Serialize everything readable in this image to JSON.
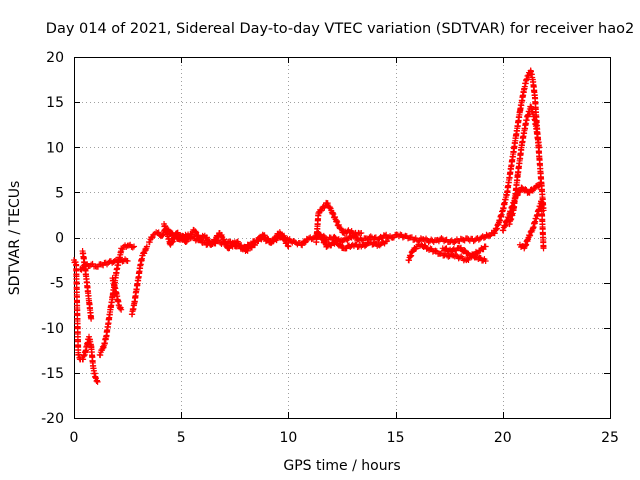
{
  "chart_data": {
    "type": "scatter",
    "title": "Day 014 of 2021, Sidereal Day-to-day VTEC variation (SDTVAR) for receiver hao2",
    "xlabel": "GPS time / hours",
    "ylabel": "SDTVAR / TECUs",
    "xlim": [
      0,
      25
    ],
    "ylim": [
      -20,
      20
    ],
    "xticks": [
      0,
      5,
      10,
      15,
      20,
      25
    ],
    "yticks": [
      -20,
      -15,
      -10,
      -5,
      0,
      5,
      10,
      15,
      20
    ],
    "grid": true,
    "marker": "+",
    "color": "#ff0000",
    "series": [
      {
        "name": "SDTVAR",
        "segments": [
          {
            "x": [
              0.0,
              0.1,
              0.2,
              0.3,
              0.4,
              0.5,
              0.6,
              0.7,
              0.8,
              0.9,
              1.0,
              1.1
            ],
            "y": [
              -2.5,
              -3.0,
              -13.0,
              -13.5,
              -13.5,
              -13.0,
              -12.0,
              -11.0,
              -12.0,
              -14.5,
              -15.5,
              -16.0
            ]
          },
          {
            "x": [
              0.4,
              0.5,
              0.6,
              0.7,
              0.8
            ],
            "y": [
              -1.5,
              -3.0,
              -5.0,
              -7.0,
              -9.0
            ]
          },
          {
            "x": [
              0.3,
              0.5,
              0.8,
              1.0,
              1.3,
              1.6,
              1.9,
              2.2,
              2.5
            ],
            "y": [
              -3.5,
              -3.2,
              -3.0,
              -3.2,
              -3.0,
              -2.8,
              -2.6,
              -2.5,
              -2.6
            ]
          },
          {
            "x": [
              1.2,
              1.3,
              1.4,
              1.5,
              1.6,
              1.7,
              1.8,
              1.9,
              2.0,
              2.1,
              2.2
            ],
            "y": [
              -13.0,
              -12.5,
              -12.0,
              -11.0,
              -9.5,
              -8.0,
              -6.5,
              -5.0,
              -3.5,
              -2.5,
              -1.5
            ]
          },
          {
            "x": [
              1.8,
              1.9,
              2.0,
              2.1,
              2.2
            ],
            "y": [
              -4.5,
              -5.5,
              -6.5,
              -7.5,
              -8.0
            ]
          },
          {
            "x": [
              2.2,
              2.5,
              2.8
            ],
            "y": [
              -1.2,
              -0.9,
              -1.0
            ]
          },
          {
            "x": [
              2.7,
              2.8,
              2.9,
              3.0,
              3.1,
              3.2,
              3.3,
              3.4
            ],
            "y": [
              -8.5,
              -7.5,
              -6.0,
              -4.5,
              -3.0,
              -2.0,
              -1.5,
              -1.0
            ]
          },
          {
            "x": [
              3.5,
              3.7,
              3.9,
              4.1,
              4.3,
              4.5,
              4.7,
              4.9,
              5.2,
              5.5,
              5.8,
              6.1,
              6.4,
              6.7,
              7.0,
              7.3,
              7.6,
              7.9,
              8.2,
              8.5,
              8.8,
              9.1,
              9.4,
              9.7,
              10.0,
              10.3,
              10.6,
              10.9,
              11.2,
              11.5,
              11.8,
              12.1,
              12.4,
              12.7,
              13.0,
              13.3,
              13.6,
              13.9,
              14.2,
              14.5,
              14.8,
              15.1,
              15.4,
              15.7,
              16.0,
              16.3,
              16.6,
              16.9,
              17.2,
              17.5,
              17.8,
              18.1,
              18.4,
              18.7,
              19.0,
              19.3,
              19.6
            ],
            "y": [
              -0.5,
              0.3,
              0.5,
              0.2,
              1.0,
              0.5,
              0.2,
              -0.2,
              0.3,
              0.0,
              -0.3,
              0.2,
              -0.8,
              -0.4,
              -0.7,
              -0.5,
              -1.0,
              -1.2,
              -0.8,
              -0.3,
              0.0,
              -0.5,
              -0.2,
              0.2,
              -0.3,
              -0.5,
              -0.8,
              -0.2,
              0.0,
              0.3,
              -0.2,
              0.0,
              -0.4,
              -0.2,
              0.2,
              -0.3,
              -0.1,
              0.0,
              -0.2,
              0.2,
              0.0,
              0.3,
              0.1,
              0.0,
              -0.3,
              -0.2,
              -0.4,
              -0.3,
              -0.2,
              -0.5,
              -0.4,
              -0.2,
              -0.2,
              -0.3,
              0.0,
              0.2,
              0.5
            ]
          },
          {
            "x": [
              4.2,
              4.5,
              4.8,
              5.2,
              5.6,
              6.0,
              6.4,
              6.8,
              7.2,
              7.6,
              8.0,
              8.4,
              8.8,
              9.2,
              9.6,
              10.0
            ],
            "y": [
              1.5,
              -0.8,
              0.5,
              -0.5,
              0.8,
              -0.6,
              -0.8,
              0.5,
              -1.2,
              -0.5,
              -1.5,
              -0.8,
              0.3,
              -0.6,
              0.6,
              -1.0
            ]
          },
          {
            "x": [
              11.3,
              11.4,
              11.8,
              12.0,
              12.2,
              12.4,
              12.6,
              12.8,
              13.0,
              13.2,
              13.4
            ],
            "y": [
              -0.5,
              2.7,
              3.8,
              3.0,
              2.0,
              1.0,
              0.5,
              0.8,
              0.5,
              0.3,
              0.5
            ]
          },
          {
            "x": [
              11.4,
              11.8,
              12.2,
              12.6,
              13.0,
              13.4,
              13.8,
              14.2,
              14.6
            ],
            "y": [
              0.5,
              -1.0,
              -0.5,
              -1.2,
              -0.8,
              -1.0,
              -0.6,
              -0.8,
              -0.4
            ]
          },
          {
            "x": [
              15.6,
              15.8,
              16.0,
              16.2,
              16.5,
              16.8,
              17.1,
              17.4,
              17.7,
              18.0,
              18.3,
              18.6,
              18.9,
              19.2
            ],
            "y": [
              -2.5,
              -1.5,
              -1.0,
              -0.8,
              -1.2,
              -1.5,
              -1.8,
              -2.0,
              -2.0,
              -2.2,
              -2.5,
              -2.0,
              -1.5,
              -1.0
            ]
          },
          {
            "x": [
              17.2,
              17.6,
              18.0,
              18.4,
              18.8,
              19.2
            ],
            "y": [
              -1.2,
              -1.5,
              -1.2,
              -1.8,
              -2.2,
              -2.6
            ]
          },
          {
            "x": [
              19.6,
              19.8,
              20.0,
              20.2,
              20.4,
              20.6,
              20.8,
              21.0,
              21.1,
              21.2,
              21.3,
              21.4,
              21.5,
              21.6,
              21.7,
              21.8,
              21.9
            ],
            "y": [
              0.5,
              1.5,
              3.0,
              5.0,
              8.0,
              11.0,
              14.0,
              16.5,
              17.5,
              18.0,
              18.5,
              17.5,
              15.5,
              12.0,
              9.0,
              6.0,
              3.0
            ]
          },
          {
            "x": [
              20.3,
              20.5,
              20.7,
              20.9,
              21.1,
              21.3,
              21.5,
              21.7
            ],
            "y": [
              1.5,
              3.0,
              7.0,
              10.5,
              13.0,
              14.5,
              13.0,
              10.0
            ]
          },
          {
            "x": [
              20.0,
              20.3,
              20.6,
              20.9,
              21.2,
              21.5,
              21.8
            ],
            "y": [
              0.8,
              2.5,
              4.5,
              5.5,
              5.0,
              5.5,
              6.0
            ]
          },
          {
            "x": [
              20.8,
              21.0,
              21.2,
              21.4,
              21.6,
              21.8,
              21.9
            ],
            "y": [
              -0.8,
              -1.2,
              0.0,
              1.0,
              2.5,
              4.0,
              -1.2
            ]
          }
        ]
      }
    ]
  }
}
